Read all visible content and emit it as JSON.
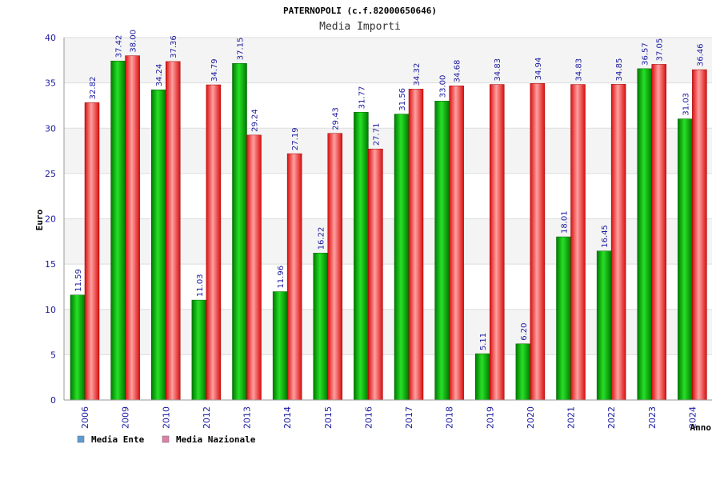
{
  "chart_data": {
    "type": "bar",
    "title": "PATERNOPOLI (c.f.82000650646)",
    "subtitle": "Media Importi",
    "xlabel": "Anno",
    "ylabel": "Euro",
    "ylim": [
      0,
      40
    ],
    "y_ticks": [
      "0",
      "5",
      "10",
      "15",
      "20",
      "25",
      "30",
      "35",
      "40"
    ],
    "grid": true,
    "legend_position": "bottom-left",
    "categories": [
      "2006",
      "2009",
      "2010",
      "2012",
      "2013",
      "2014",
      "2015",
      "2016",
      "2017",
      "2018",
      "2019",
      "2020",
      "2021",
      "2022",
      "2023",
      "2024"
    ],
    "series": [
      {
        "name": "Media Ente",
        "color": "#00c000",
        "legend_color": "#5b9bd5",
        "values": [
          11.59,
          37.42,
          34.24,
          11.03,
          37.15,
          11.96,
          16.22,
          31.77,
          31.56,
          33.0,
          5.11,
          6.2,
          18.01,
          16.45,
          36.57,
          31.03
        ],
        "labels": [
          "11.59",
          "37.42",
          "34.24",
          "11.03",
          "37.15",
          "11.96",
          "16.22",
          "31.77",
          "31.56",
          "33.00",
          "5.11",
          "6.20",
          "18.01",
          "16.45",
          "36.57",
          "31.03"
        ]
      },
      {
        "name": "Media Nazionale",
        "color": "#ff3030",
        "legend_color": "#e07fa8",
        "values": [
          32.82,
          38.0,
          37.36,
          34.79,
          29.24,
          27.19,
          29.43,
          27.71,
          34.32,
          34.68,
          34.83,
          34.94,
          34.83,
          34.85,
          37.05,
          36.46
        ],
        "labels": [
          "32.82",
          "38.00",
          "37.36",
          "34.79",
          "29.24",
          "27.19",
          "29.43",
          "27.71",
          "34.32",
          "34.68",
          "34.83",
          "34.94",
          "34.83",
          "34.85",
          "37.05",
          "36.46"
        ]
      }
    ]
  }
}
